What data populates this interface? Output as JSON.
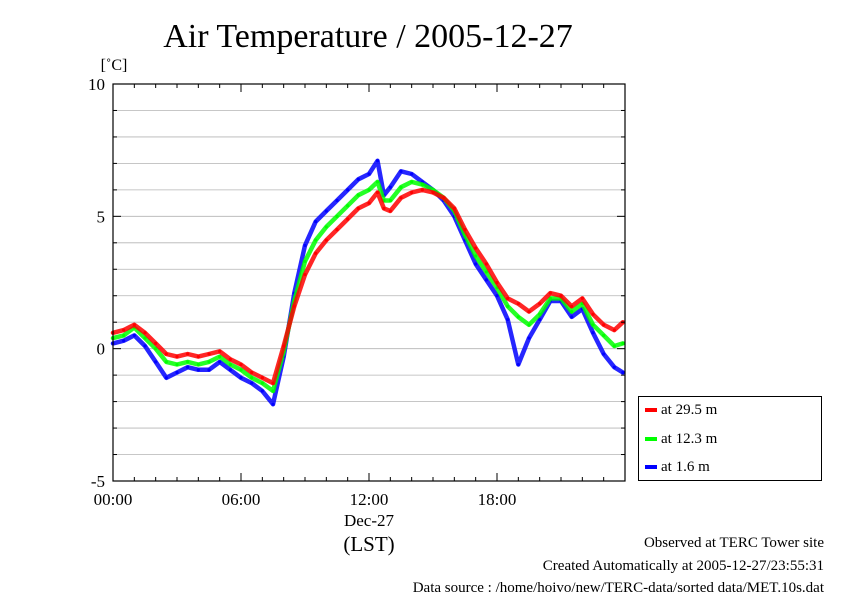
{
  "chart_data": {
    "type": "line",
    "title": "Air Temperature / 2005-12-27",
    "ylabel": "[˚C]",
    "xlabel": "(LST)",
    "date_label": "Dec-27",
    "ylim": [
      -5,
      10
    ],
    "xlim": [
      0,
      24
    ],
    "y_ticks": [
      -5,
      0,
      5,
      10
    ],
    "y_tick_labels": [
      "-5",
      "0",
      "5",
      "10"
    ],
    "x_ticks": [
      0,
      6,
      12,
      18
    ],
    "x_tick_labels": [
      "00:00",
      "06:00",
      "12:00",
      "18:00"
    ],
    "grid": true,
    "legend_position": "right",
    "x": [
      0,
      0.5,
      1,
      1.5,
      2,
      2.5,
      3,
      3.5,
      4,
      4.5,
      5,
      5.5,
      6,
      6.5,
      7,
      7.5,
      8,
      8.5,
      9,
      9.5,
      10,
      10.5,
      11,
      11.5,
      12,
      12.4,
      12.7,
      13,
      13.5,
      14,
      14.5,
      15,
      15.5,
      16,
      16.5,
      17,
      17.5,
      18,
      18.5,
      19,
      19.5,
      20,
      20.5,
      21,
      21.5,
      22,
      22.5,
      23,
      23.5,
      23.9
    ],
    "series": [
      {
        "name": "at 29.5 m",
        "color": "#ff0000",
        "values": [
          0.6,
          0.7,
          0.9,
          0.6,
          0.2,
          -0.2,
          -0.3,
          -0.2,
          -0.3,
          -0.2,
          -0.1,
          -0.4,
          -0.6,
          -0.9,
          -1.1,
          -1.3,
          0.1,
          1.6,
          2.8,
          3.6,
          4.1,
          4.5,
          4.9,
          5.3,
          5.5,
          5.9,
          5.3,
          5.2,
          5.7,
          5.9,
          6.0,
          5.9,
          5.7,
          5.3,
          4.5,
          3.8,
          3.2,
          2.5,
          1.9,
          1.7,
          1.4,
          1.7,
          2.1,
          2.0,
          1.6,
          1.9,
          1.3,
          0.9,
          0.7,
          1.0
        ]
      },
      {
        "name": "at 12.3 m",
        "color": "#00ff00",
        "values": [
          0.4,
          0.5,
          0.8,
          0.4,
          0.0,
          -0.5,
          -0.6,
          -0.5,
          -0.6,
          -0.5,
          -0.3,
          -0.6,
          -0.8,
          -1.1,
          -1.3,
          -1.6,
          -0.1,
          1.8,
          3.3,
          4.1,
          4.6,
          5.0,
          5.4,
          5.8,
          6.0,
          6.3,
          5.6,
          5.6,
          6.1,
          6.3,
          6.2,
          6.0,
          5.7,
          5.2,
          4.3,
          3.5,
          2.9,
          2.3,
          1.6,
          1.2,
          0.9,
          1.3,
          1.9,
          1.9,
          1.4,
          1.7,
          0.9,
          0.5,
          0.1,
          0.2
        ]
      },
      {
        "name": "at 1.6 m",
        "color": "#0000ff",
        "values": [
          0.2,
          0.3,
          0.5,
          0.1,
          -0.5,
          -1.1,
          -0.9,
          -0.7,
          -0.8,
          -0.8,
          -0.5,
          -0.8,
          -1.1,
          -1.3,
          -1.6,
          -2.1,
          -0.3,
          2.1,
          3.9,
          4.8,
          5.2,
          5.6,
          6.0,
          6.4,
          6.6,
          7.1,
          5.8,
          6.1,
          6.7,
          6.6,
          6.3,
          6.0,
          5.6,
          5.0,
          4.1,
          3.2,
          2.6,
          2.0,
          1.1,
          -0.6,
          0.4,
          1.1,
          1.8,
          1.8,
          1.2,
          1.5,
          0.6,
          -0.2,
          -0.7,
          -0.9
        ]
      }
    ]
  },
  "footer": {
    "line1": "Observed at TERC Tower site",
    "line2": "Created Automatically at 2005-12-27/23:55:31",
    "line3": "Data source : /home/hoivo/new/TERC-data/sorted  data/MET.10s.dat"
  }
}
